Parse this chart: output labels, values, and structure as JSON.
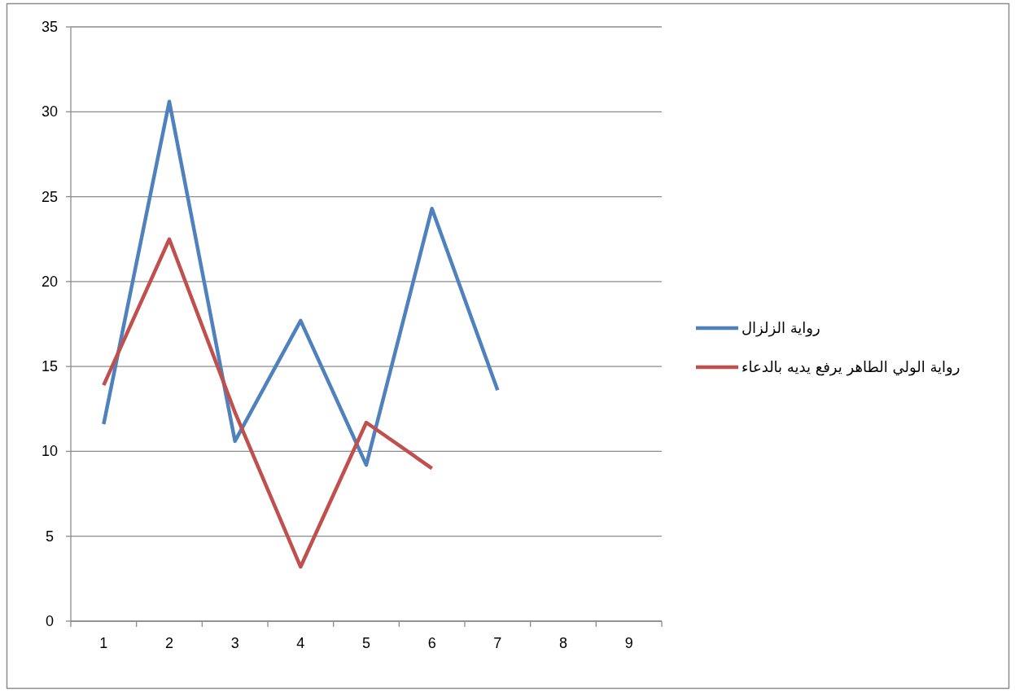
{
  "chart_data": {
    "type": "line",
    "categories": [
      "1",
      "2",
      "3",
      "4",
      "5",
      "6",
      "7",
      "8",
      "9"
    ],
    "series": [
      {
        "name": "رواية الزلزال",
        "color": "#4f81bd",
        "values": [
          11.6,
          30.6,
          10.6,
          17.7,
          9.2,
          24.3,
          13.6,
          null,
          null
        ]
      },
      {
        "name": "رواية الولي الطاهر يرفع يديه بالدعاء",
        "color": "#c0504d",
        "values": [
          13.9,
          22.5,
          12.3,
          3.2,
          11.7,
          9.0,
          null,
          null,
          null
        ]
      }
    ],
    "ylim": [
      0,
      35
    ],
    "yticks": [
      0,
      5,
      10,
      15,
      20,
      25,
      30,
      35
    ],
    "grid": "y",
    "legend": "right",
    "marker": "none",
    "line_style": "solid"
  }
}
